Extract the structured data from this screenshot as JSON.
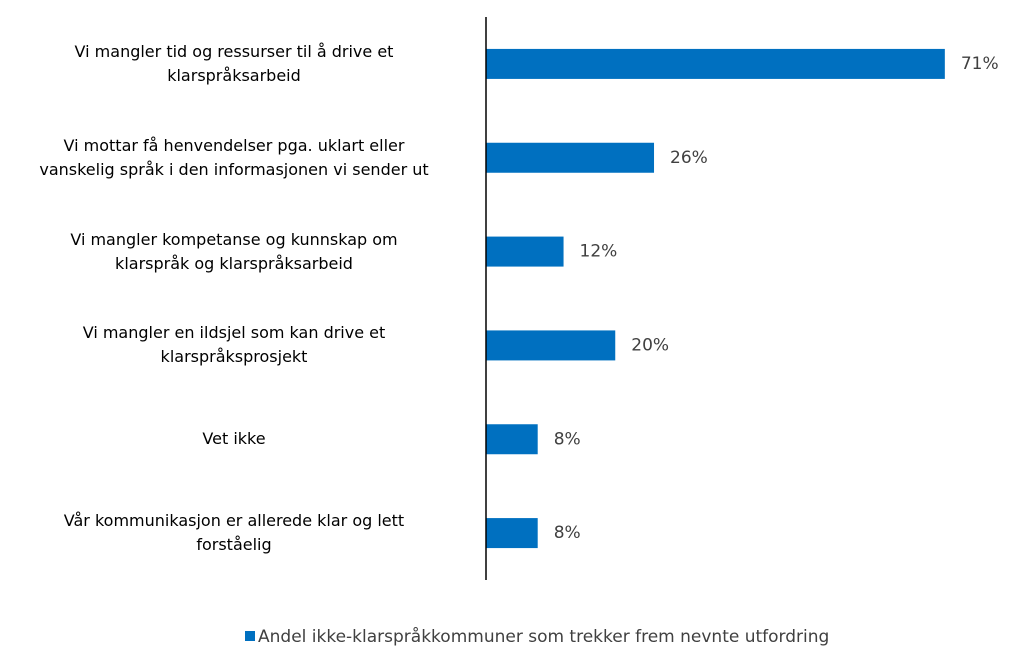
{
  "chart_data": {
    "type": "hbar",
    "categories": [
      "Vi mangler tid og ressurser til å drive et\nklarspråksarbeid",
      "Vi mottar få henvendelser pga. uklart eller\nvanskelig språk i den informasjonen vi sender ut",
      "Vi mangler kompetanse og kunnskap om\nklarspråk og klarspråksarbeid",
      "Vi mangler en ildsjel som kan drive et\nklarspråksprosjekt",
      "Vet ikke",
      "Vår kommunikasjon er allerede klar og lett\nforståelig"
    ],
    "series": [
      {
        "name": "Andel ikke-klarspråkkommuner som trekker frem nevnte utfordring",
        "color": "#0070c0",
        "values": [
          71,
          26,
          12,
          20,
          8,
          8
        ],
        "value_labels": [
          "71%",
          "26%",
          "12%",
          "20%",
          "8%",
          "8%"
        ]
      }
    ],
    "xlim": [
      0,
      80
    ],
    "legend": "bottom"
  }
}
